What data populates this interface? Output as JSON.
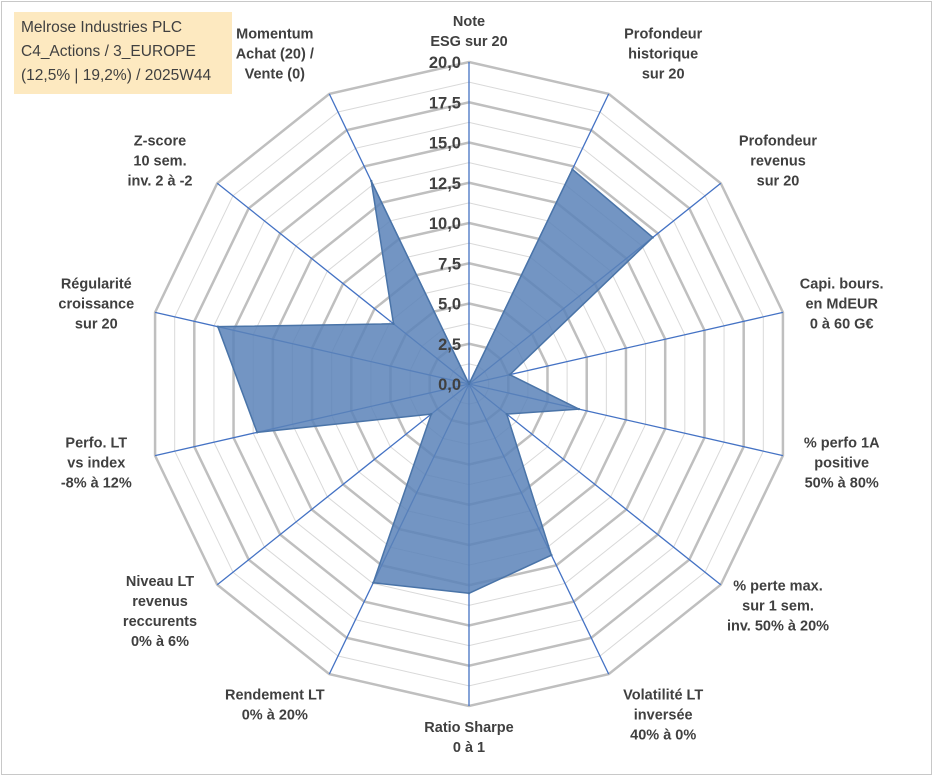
{
  "info": {
    "company": "Melrose Industries PLC",
    "category": "C4_Actions / 3_EUROPE",
    "stats": "(12,5% | 19,2%) / 2025W44"
  },
  "chart_data": {
    "type": "radar",
    "rlim": [
      0,
      20
    ],
    "ticks": [
      "0,0",
      "2,5",
      "5,0",
      "7,5",
      "10,0",
      "12,5",
      "15,0",
      "17,5",
      "20,0"
    ],
    "axes": [
      {
        "label": [
          "Note",
          "ESG sur 20"
        ],
        "value": 0
      },
      {
        "label": [
          "Profondeur",
          "historique",
          "sur 20"
        ],
        "value": 14.8
      },
      {
        "label": [
          "Profondeur",
          "revenus",
          "sur 20"
        ],
        "value": 14.6
      },
      {
        "label": [
          "Capi. bours.",
          "en MdEUR",
          "0 à 60 G€"
        ],
        "value": 2.6
      },
      {
        "label": [
          "% perfo 1A",
          "positive",
          "50% à 80%"
        ],
        "value": 7.0
      },
      {
        "label": [
          "% perte max.",
          "sur 1 sem.",
          "inv. 50% à 20%"
        ],
        "value": 3.0
      },
      {
        "label": [
          "Volatilité LT",
          "inversée",
          "40% à 0%"
        ],
        "value": 11.8
      },
      {
        "label": [
          "Ratio Sharpe",
          "0 à 1"
        ],
        "value": 13.0
      },
      {
        "label": [
          "Rendement LT",
          "0% à 20%"
        ],
        "value": 13.7
      },
      {
        "label": [
          "Niveau LT",
          "revenus",
          "reccurents",
          "0% à 6%"
        ],
        "value": 3.0
      },
      {
        "label": [
          "Perfo. LT",
          "vs index",
          "-8% à 12%"
        ],
        "value": 13.5
      },
      {
        "label": [
          "Régularité",
          "croissance",
          "sur 20"
        ],
        "value": 16.0
      },
      {
        "label": [
          "Z-score",
          "10 sem.",
          "inv. 2 à -2"
        ],
        "value": 6.0
      },
      {
        "label": [
          "Momentum",
          "Achat (20) /",
          "Vente (0)"
        ],
        "value": 14.0
      }
    ],
    "colors": {
      "fill": "#5b83b8",
      "outline": "#4a74a8",
      "spokes": "#4472c4",
      "grid_major": "#bfbfbf",
      "grid_minor": "#d9d9d9",
      "text": "#404040",
      "info_bg": "#fde9c0"
    }
  }
}
